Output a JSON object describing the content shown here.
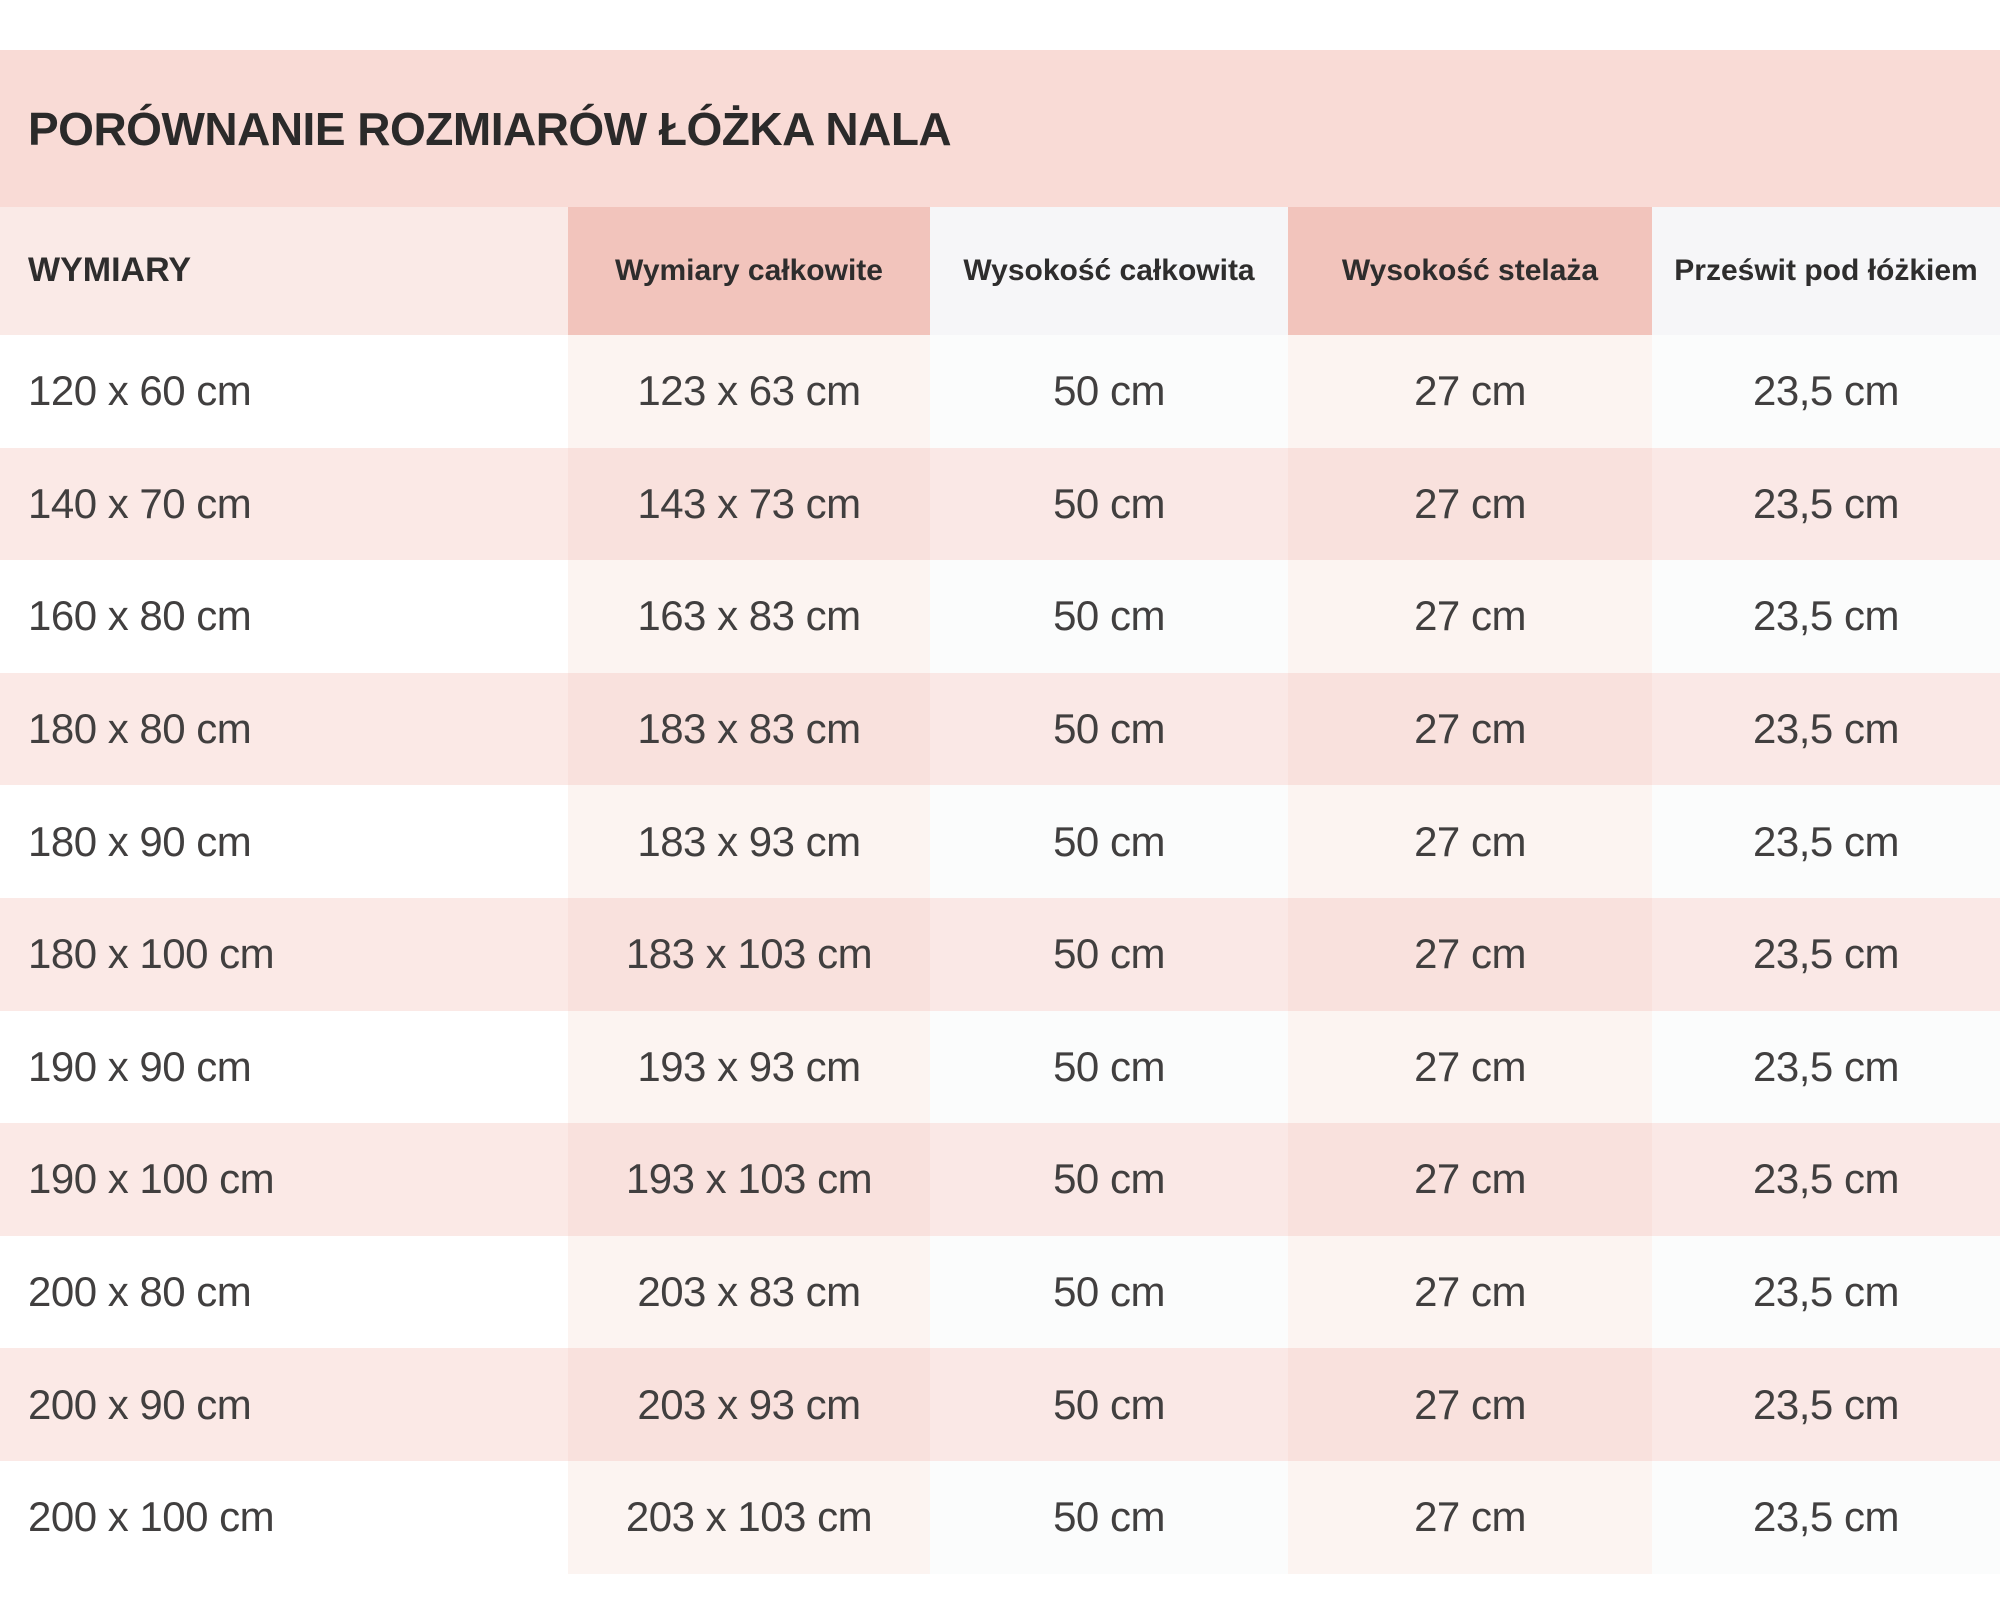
{
  "title": "PORÓWNANIE ROZMIARÓW ŁÓŻKA NALA",
  "table": {
    "columns": [
      "WYMIARY",
      "Wymiary całkowite",
      "Wysokość całkowita",
      "Wysokość stelaża",
      "Prześwit pod łóżkiem"
    ],
    "rows": [
      [
        "120 x 60 cm",
        "123 x 63 cm",
        "50 cm",
        "27 cm",
        "23,5 cm"
      ],
      [
        "140 x 70 cm",
        "143 x 73 cm",
        "50 cm",
        "27 cm",
        "23,5 cm"
      ],
      [
        "160 x 80 cm",
        "163 x 83 cm",
        "50 cm",
        "27 cm",
        "23,5 cm"
      ],
      [
        "180 x 80 cm",
        "183 x 83 cm",
        "50 cm",
        "27 cm",
        "23,5 cm"
      ],
      [
        "180 x 90 cm",
        "183 x 93 cm",
        "50 cm",
        "27 cm",
        "23,5 cm"
      ],
      [
        "180 x 100 cm",
        "183 x 103 cm",
        "50 cm",
        "27 cm",
        "23,5 cm"
      ],
      [
        "190 x 90 cm",
        "193 x 93 cm",
        "50 cm",
        "27 cm",
        "23,5 cm"
      ],
      [
        "190 x 100 cm",
        "193 x 103 cm",
        "50 cm",
        "27 cm",
        "23,5 cm"
      ],
      [
        "200 x 80 cm",
        "203 x 83 cm",
        "50 cm",
        "27 cm",
        "23,5 cm"
      ],
      [
        "200 x 90 cm",
        "203 x 93 cm",
        "50 cm",
        "27 cm",
        "23,5 cm"
      ],
      [
        "200 x 100 cm",
        "203 x 103 cm",
        "50 cm",
        "27 cm",
        "23,5 cm"
      ]
    ]
  },
  "colors": {
    "title_bar_bg": "#f9dbd6",
    "header_col1_bg": "#faeae7",
    "header_pink_bg": "#f2c4bc",
    "header_gray_bg": "#f6f6f8",
    "row_pink_bg": "#fbe9e6",
    "pink_column_tint_on_white": "#fcf4f1",
    "pink_column_tint_on_pink": "#f9e1dd",
    "text_dark": "#2b2a2a",
    "text_body": "#413f3f"
  },
  "chart_data": {
    "type": "table",
    "title": "PORÓWNANIE ROZMIARÓW ŁÓŻKA NALA",
    "columns": [
      "WYMIARY",
      "Wymiary całkowite",
      "Wysokość całkowita",
      "Wysokość stelaża",
      "Prześwit pod łóżkiem"
    ],
    "rows": [
      [
        "120 x 60 cm",
        "123 x 63 cm",
        "50 cm",
        "27 cm",
        "23,5 cm"
      ],
      [
        "140 x 70 cm",
        "143 x 73 cm",
        "50 cm",
        "27 cm",
        "23,5 cm"
      ],
      [
        "160 x 80 cm",
        "163 x 83 cm",
        "50 cm",
        "27 cm",
        "23,5 cm"
      ],
      [
        "180 x 80 cm",
        "183 x 83 cm",
        "50 cm",
        "27 cm",
        "23,5 cm"
      ],
      [
        "180 x 90 cm",
        "183 x 93 cm",
        "50 cm",
        "27 cm",
        "23,5 cm"
      ],
      [
        "180 x 100 cm",
        "183 x 103 cm",
        "50 cm",
        "27 cm",
        "23,5 cm"
      ],
      [
        "190 x 90 cm",
        "193 x 93 cm",
        "50 cm",
        "27 cm",
        "23,5 cm"
      ],
      [
        "190 x 100 cm",
        "193 x 103 cm",
        "50 cm",
        "27 cm",
        "23,5 cm"
      ],
      [
        "200 x 80 cm",
        "203 x 83 cm",
        "50 cm",
        "27 cm",
        "23,5 cm"
      ],
      [
        "200 x 90 cm",
        "203 x 93 cm",
        "50 cm",
        "27 cm",
        "23,5 cm"
      ],
      [
        "200 x 100 cm",
        "203 x 103 cm",
        "50 cm",
        "27 cm",
        "23,5 cm"
      ]
    ],
    "layout": {
      "zebra_striping": true,
      "highlighted_columns": [
        "Wymiary całkowite",
        "Wysokość stelaża"
      ],
      "first_column_align": "left",
      "other_columns_align": "center"
    }
  }
}
